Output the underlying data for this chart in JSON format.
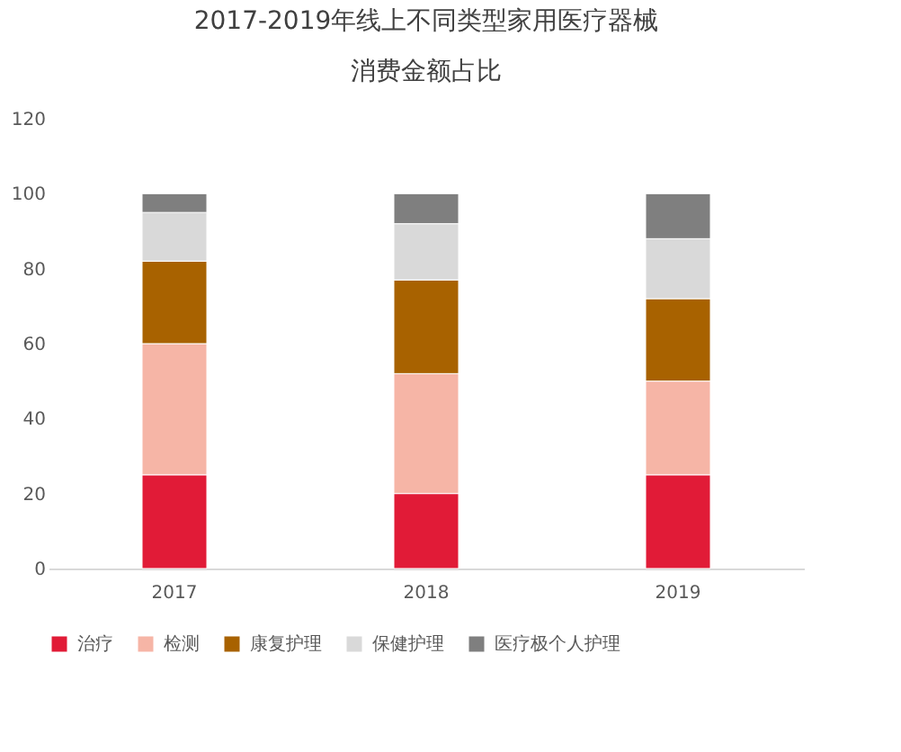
{
  "chart_data": {
    "type": "bar",
    "stacked": true,
    "title": "2017-2019年线上不同类型家用医疗器械",
    "subtitle": "消费金额占比",
    "categories": [
      "2017",
      "2018",
      "2019"
    ],
    "series": [
      {
        "name": "治疗",
        "color": "#e11b37",
        "values": [
          25,
          20,
          25
        ]
      },
      {
        "name": "检测",
        "color": "#f6b5a6",
        "values": [
          35,
          32,
          25
        ]
      },
      {
        "name": "康复护理",
        "color": "#a86200",
        "values": [
          22,
          25,
          22
        ]
      },
      {
        "name": "保健护理",
        "color": "#d9d9d9",
        "values": [
          13,
          15,
          16
        ]
      },
      {
        "name": "医疗极个人护理",
        "color": "#7f7f7f",
        "values": [
          5,
          8,
          12
        ]
      }
    ],
    "ylim": [
      0,
      120
    ],
    "yticks": [
      0,
      20,
      40,
      60,
      80,
      100,
      120
    ],
    "grid": false,
    "legend": "bottom"
  }
}
